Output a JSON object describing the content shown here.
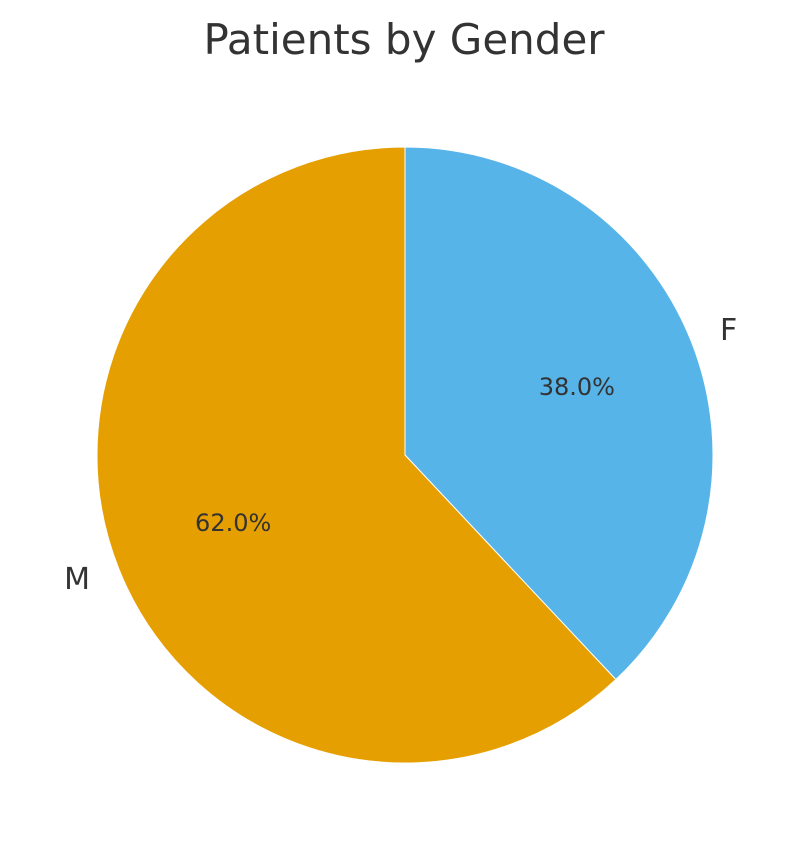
{
  "chart_data": {
    "type": "pie",
    "title": "Patients by Gender",
    "categories": [
      "F",
      "M"
    ],
    "values": [
      38.0,
      62.0
    ],
    "percent_labels": [
      "38.0%",
      "62.0%"
    ],
    "colors": [
      "#56B4E9",
      "#E69F00"
    ],
    "start": "12 o'clock",
    "direction": "clockwise",
    "legend": "none"
  }
}
